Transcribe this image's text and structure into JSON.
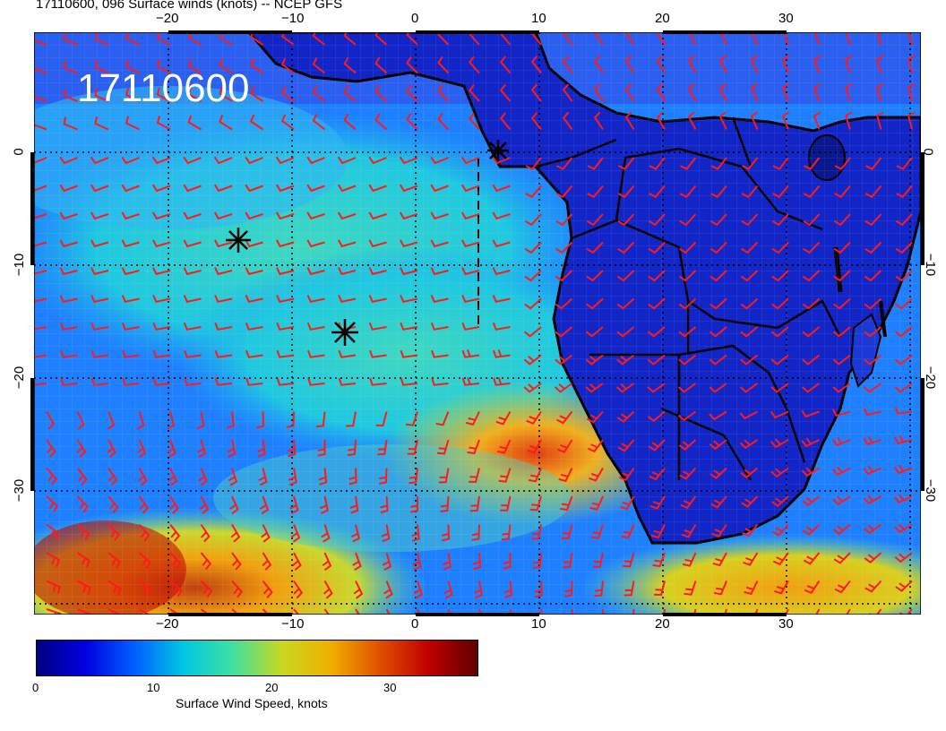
{
  "title": "17110600, 096 Surface winds (knots) -- NCEP GFS",
  "timestamp_stamp": "17110600",
  "map": {
    "lon_ticks": [
      "−20",
      "−10",
      "0",
      "10",
      "20",
      "30"
    ],
    "lat_ticks": [
      "0",
      "−10",
      "−20",
      "−30"
    ],
    "wind_barb_color": "#ff1a1a",
    "markers": [
      "asterisk",
      "asterisk",
      "asterisk"
    ]
  },
  "colorbar": {
    "title": "Surface Wind Speed, knots",
    "ticks": [
      "0",
      "10",
      "20",
      "30"
    ],
    "range": [
      0,
      37
    ],
    "colors": [
      "#000080",
      "#0000e0",
      "#0060ff",
      "#00c8e0",
      "#40e0a0",
      "#c8d820",
      "#f0b000",
      "#e05000",
      "#c00000",
      "#600000"
    ]
  }
}
